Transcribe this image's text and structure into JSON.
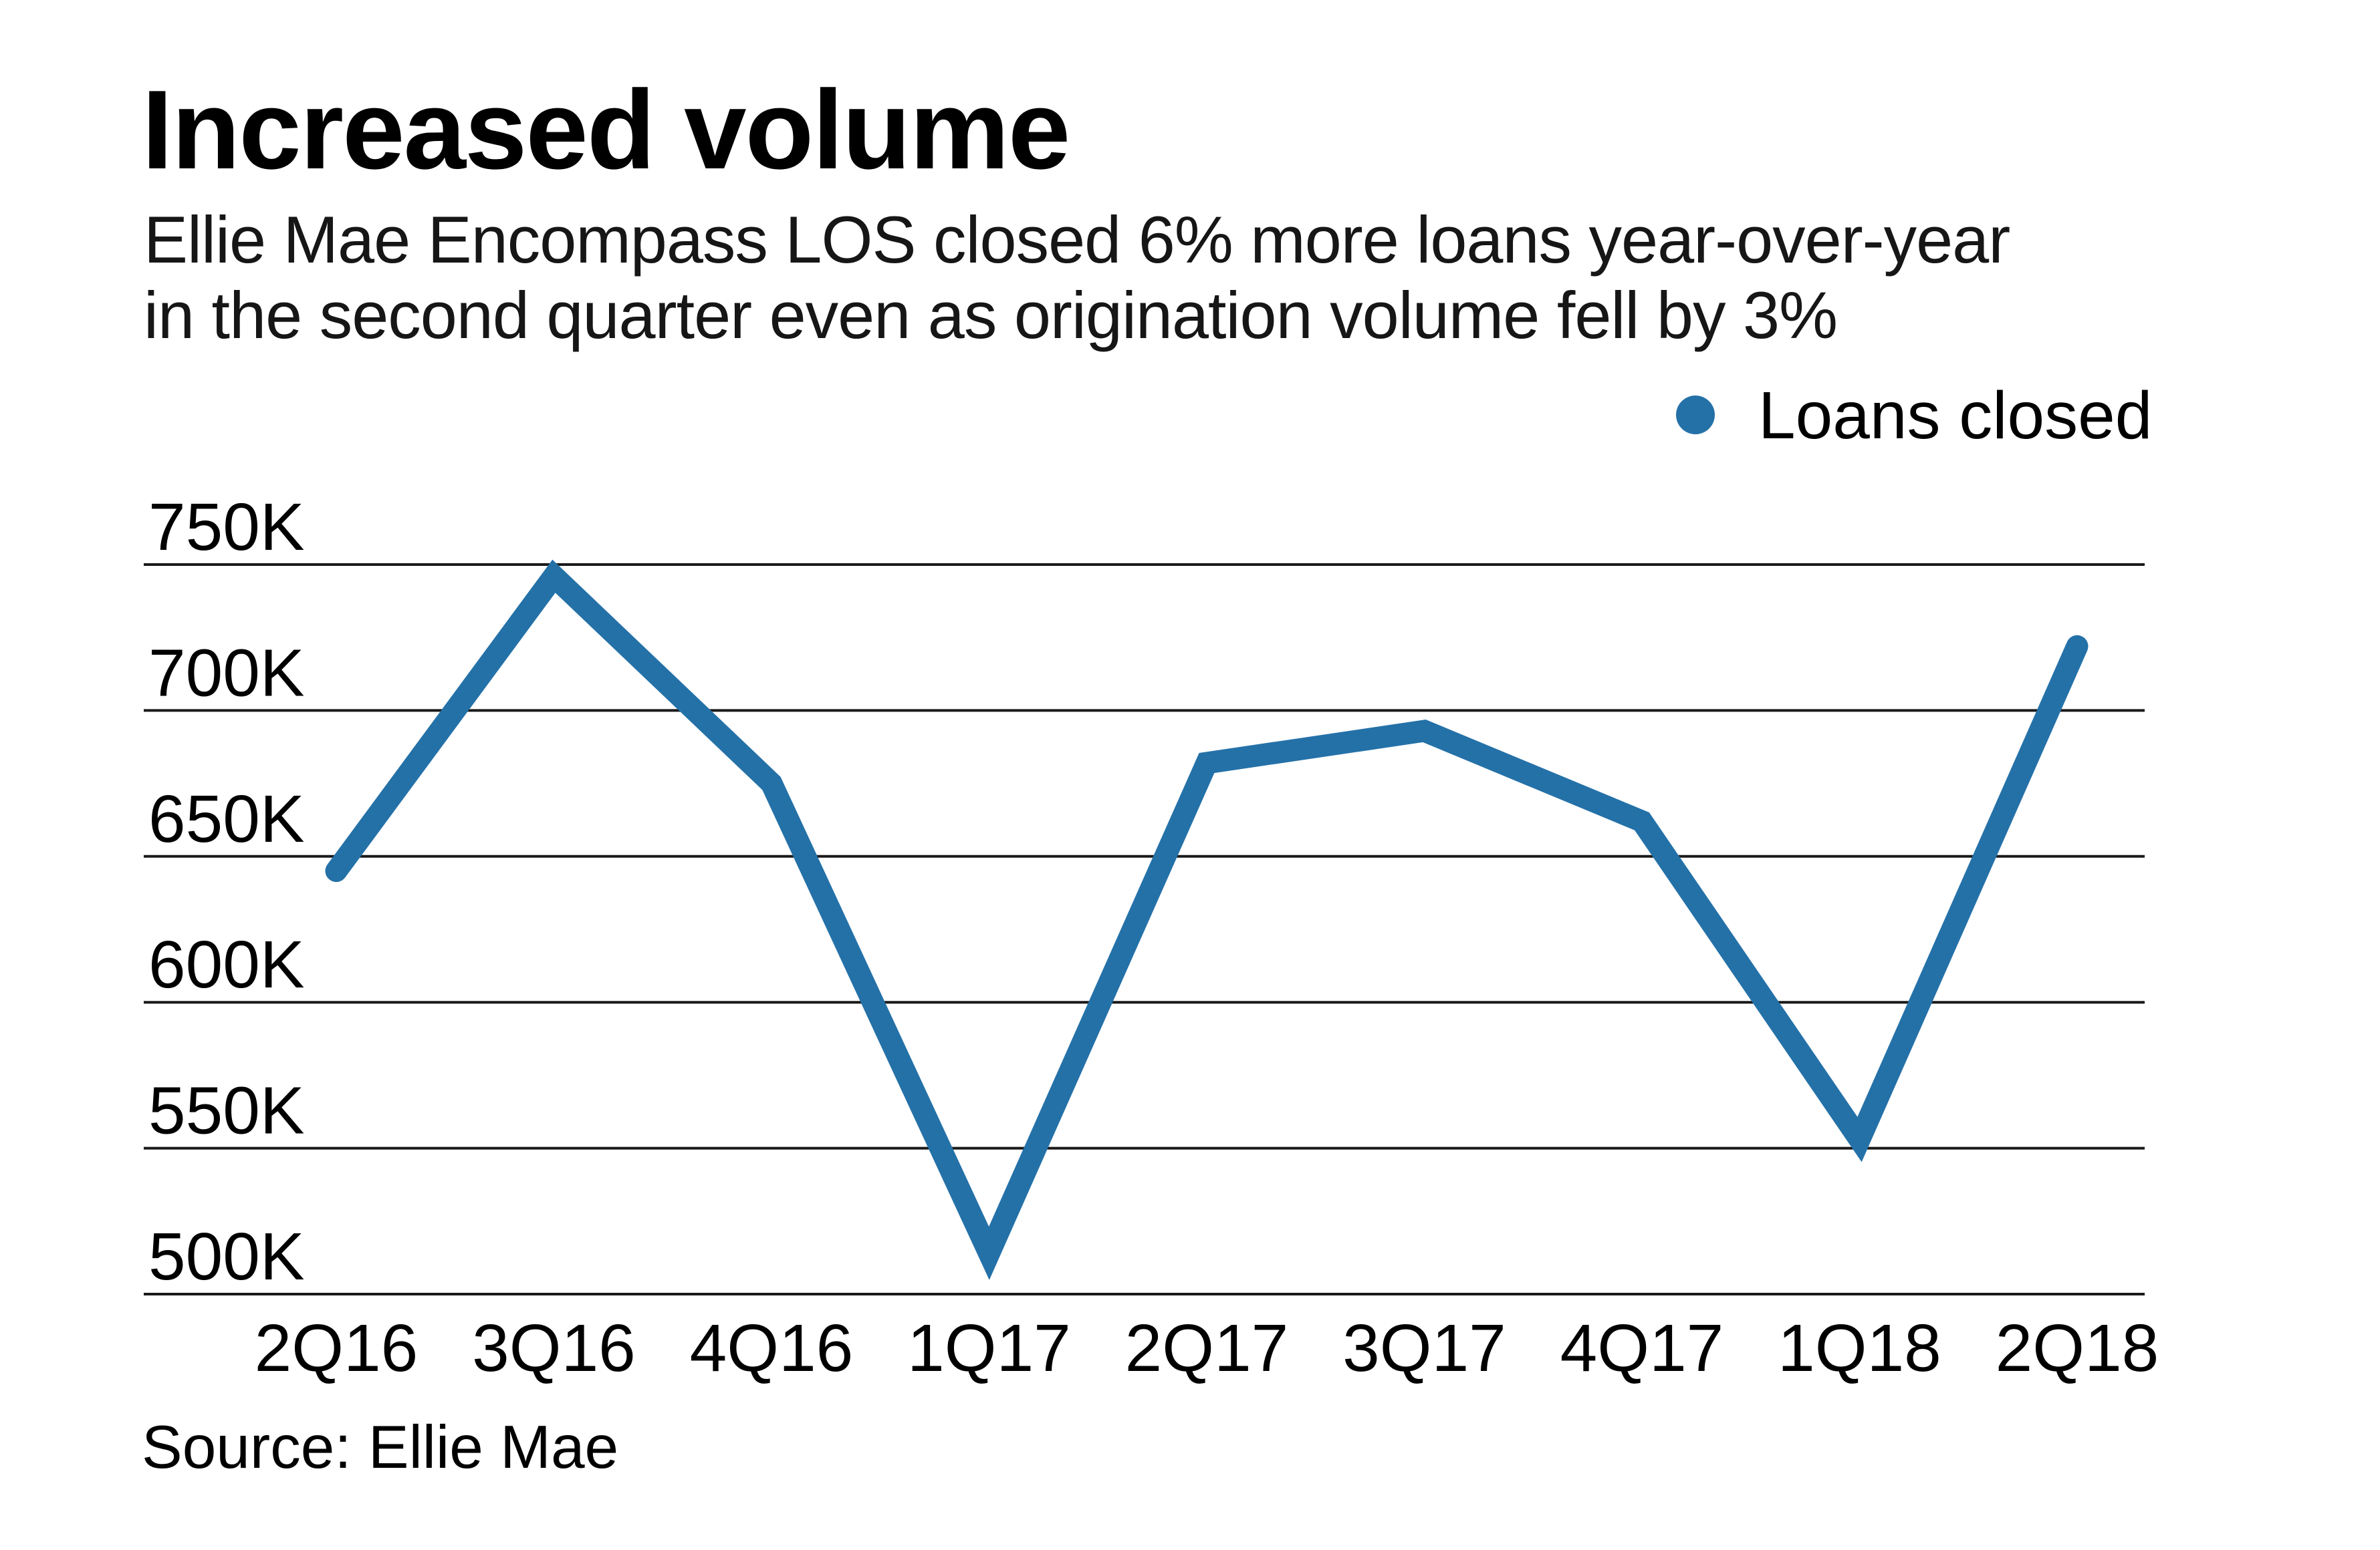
{
  "chart_data": {
    "type": "line",
    "title": "Increased volume",
    "subtitle_line1": "Ellie Mae Encompass LOS closed 6% more loans year-over-year",
    "subtitle_line2": "in the second quarter even as origination volume fell by 3%",
    "legend_label": "Loans closed",
    "legend_position": "top-right",
    "source": "Source: Ellie Mae",
    "unit": "thousands of loans closed",
    "categories": [
      "2Q16",
      "3Q16",
      "4Q16",
      "1Q17",
      "2Q17",
      "3Q17",
      "4Q17",
      "1Q18",
      "2Q18"
    ],
    "series": [
      {
        "name": "Loans closed",
        "values": [
          645,
          746,
          675,
          514,
          682,
          693,
          662,
          553,
          722
        ]
      }
    ],
    "ylim": [
      500,
      750
    ],
    "yticks": [
      {
        "label": "750K",
        "value": 750
      },
      {
        "label": "700K",
        "value": 700
      },
      {
        "label": "650K",
        "value": 650
      },
      {
        "label": "600K",
        "value": 600
      },
      {
        "label": "550K",
        "value": 550
      },
      {
        "label": "500K",
        "value": 500
      }
    ],
    "grid": "horizontal",
    "line_color": "#2471a8",
    "text_color": "#000000",
    "background_color": "#ffffff"
  }
}
